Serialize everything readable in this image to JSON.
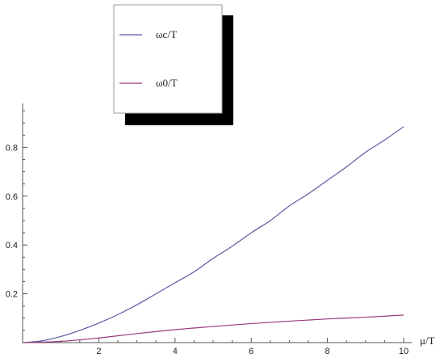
{
  "chart_data": {
    "type": "line",
    "title": "",
    "xlabel": "μ/T",
    "ylabel": "",
    "xlim": [
      0,
      10
    ],
    "ylim": [
      0,
      0.98
    ],
    "x_ticks": [
      2,
      4,
      6,
      8,
      10
    ],
    "x_tick_labels": [
      "2",
      "4",
      "6",
      "8",
      "10"
    ],
    "y_ticks": [
      0.2,
      0.4,
      0.6,
      0.8
    ],
    "y_tick_labels": [
      "0.2",
      "0.4",
      "0.6",
      "0.8"
    ],
    "legend": {
      "placement": "top-center",
      "shadow": true
    },
    "grid": false,
    "series": [
      {
        "name": "ωc/T",
        "color": "#5a5aa6",
        "x": [
          0,
          0.5,
          1,
          1.5,
          2,
          2.5,
          3,
          3.5,
          4,
          4.5,
          5,
          5.5,
          6,
          6.5,
          7,
          7.5,
          8,
          8.5,
          9,
          9.5,
          10
        ],
        "y": [
          0,
          0.007,
          0.025,
          0.05,
          0.08,
          0.115,
          0.155,
          0.2,
          0.245,
          0.29,
          0.345,
          0.395,
          0.45,
          0.5,
          0.56,
          0.61,
          0.665,
          0.72,
          0.78,
          0.83,
          0.885
        ]
      },
      {
        "name": "ω0/T",
        "color": "#9a3a7a",
        "x": [
          0,
          1,
          2,
          3,
          4,
          5,
          6,
          7,
          8,
          9,
          10
        ],
        "y": [
          0,
          0.005,
          0.019,
          0.037,
          0.053,
          0.066,
          0.078,
          0.088,
          0.097,
          0.104,
          0.113
        ]
      }
    ]
  }
}
